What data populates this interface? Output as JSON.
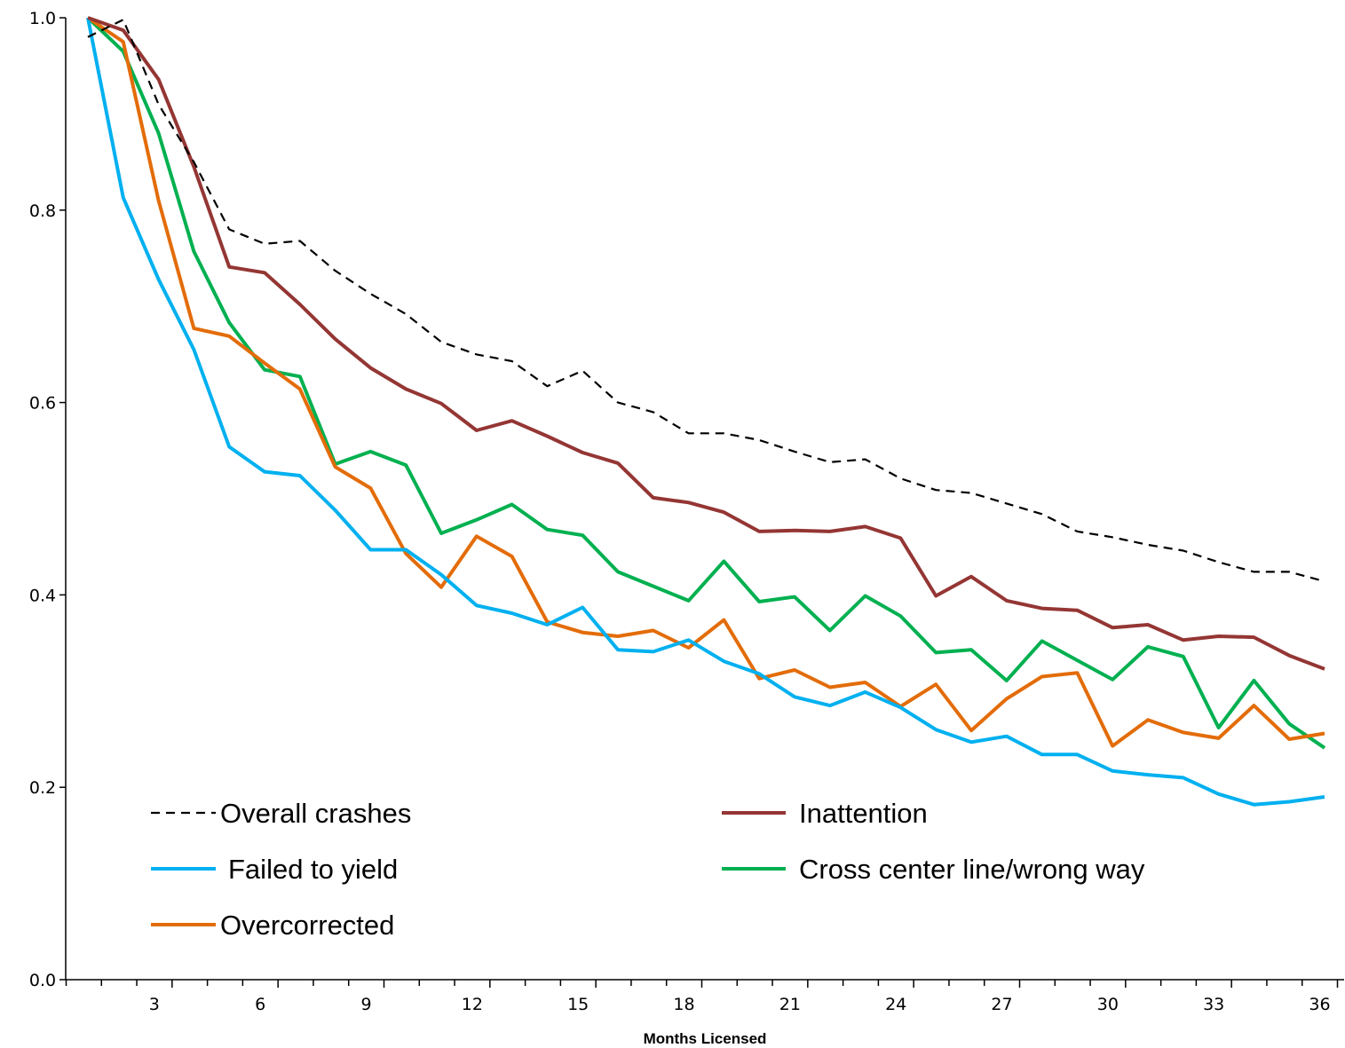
{
  "chart_data": {
    "type": "line",
    "title": "",
    "xlabel": "Months Licensed",
    "ylabel": "",
    "xlim": [
      0,
      36
    ],
    "ylim": [
      0.0,
      1.0
    ],
    "x_ticks": [
      3,
      6,
      9,
      12,
      15,
      18,
      21,
      24,
      27,
      30,
      33,
      36
    ],
    "y_ticks": [
      0.0,
      0.2,
      0.4,
      0.6,
      0.8,
      1.0
    ],
    "y_tick_labels": [
      "0.0",
      "0.2",
      "0.4",
      "0.6",
      "0.8",
      "1.0"
    ],
    "grid": false,
    "legend_position": "bottom-left",
    "x": [
      1,
      2,
      3,
      4,
      5,
      6,
      7,
      8,
      9,
      10,
      11,
      12,
      13,
      14,
      15,
      16,
      17,
      18,
      19,
      20,
      21,
      22,
      23,
      24,
      25,
      26,
      27,
      28,
      29,
      30,
      31,
      32,
      33,
      34,
      35,
      36
    ],
    "series": [
      {
        "name": "Overall crashes",
        "color": "#000000",
        "dashed": true,
        "values": [
          0.98,
          0.998,
          0.91,
          0.85,
          0.78,
          0.765,
          0.768,
          0.737,
          0.713,
          0.692,
          0.663,
          0.65,
          0.643,
          0.617,
          0.633,
          0.6,
          0.59,
          0.568,
          0.568,
          0.561,
          0.549,
          0.538,
          0.541,
          0.521,
          0.509,
          0.506,
          0.495,
          0.484,
          0.466,
          0.46,
          0.452,
          0.446,
          0.434,
          0.424,
          0.424,
          0.414
        ]
      },
      {
        "name": "Inattention",
        "color": "#943634",
        "dashed": false,
        "values": [
          1.0,
          0.987,
          0.936,
          0.845,
          0.741,
          0.735,
          0.702,
          0.666,
          0.636,
          0.614,
          0.599,
          0.571,
          0.581,
          0.565,
          0.548,
          0.537,
          0.501,
          0.496,
          0.486,
          0.466,
          0.467,
          0.466,
          0.471,
          0.459,
          0.399,
          0.419,
          0.394,
          0.386,
          0.384,
          0.366,
          0.369,
          0.353,
          0.357,
          0.356,
          0.337,
          0.323
        ]
      },
      {
        "name": "Failed to yield",
        "color": "#00B0F0",
        "dashed": false,
        "values": [
          1.0,
          0.813,
          0.728,
          0.655,
          0.554,
          0.528,
          0.524,
          0.488,
          0.447,
          0.447,
          0.421,
          0.389,
          0.381,
          0.369,
          0.387,
          0.343,
          0.341,
          0.353,
          0.331,
          0.318,
          0.294,
          0.285,
          0.299,
          0.283,
          0.26,
          0.247,
          0.253,
          0.234,
          0.234,
          0.217,
          0.213,
          0.21,
          0.193,
          0.182,
          0.185,
          0.19
        ]
      },
      {
        "name": "Cross center line/wrong way",
        "color": "#00B050",
        "dashed": false,
        "values": [
          1.0,
          0.965,
          0.88,
          0.757,
          0.683,
          0.634,
          0.627,
          0.536,
          0.549,
          0.535,
          0.464,
          0.478,
          0.494,
          0.468,
          0.462,
          0.424,
          0.409,
          0.394,
          0.435,
          0.393,
          0.398,
          0.363,
          0.399,
          0.378,
          0.34,
          0.343,
          0.311,
          0.352,
          0.332,
          0.312,
          0.346,
          0.336,
          0.262,
          0.311,
          0.266,
          0.241
        ]
      },
      {
        "name": "Overcorrected",
        "color": "#E36C09",
        "dashed": false,
        "values": [
          1.0,
          0.975,
          0.81,
          0.677,
          0.669,
          0.641,
          0.614,
          0.533,
          0.511,
          0.443,
          0.408,
          0.461,
          0.44,
          0.372,
          0.361,
          0.357,
          0.363,
          0.345,
          0.374,
          0.313,
          0.322,
          0.304,
          0.309,
          0.284,
          0.307,
          0.259,
          0.292,
          0.315,
          0.319,
          0.243,
          0.27,
          0.257,
          0.251,
          0.285,
          0.25,
          0.256
        ]
      }
    ]
  }
}
